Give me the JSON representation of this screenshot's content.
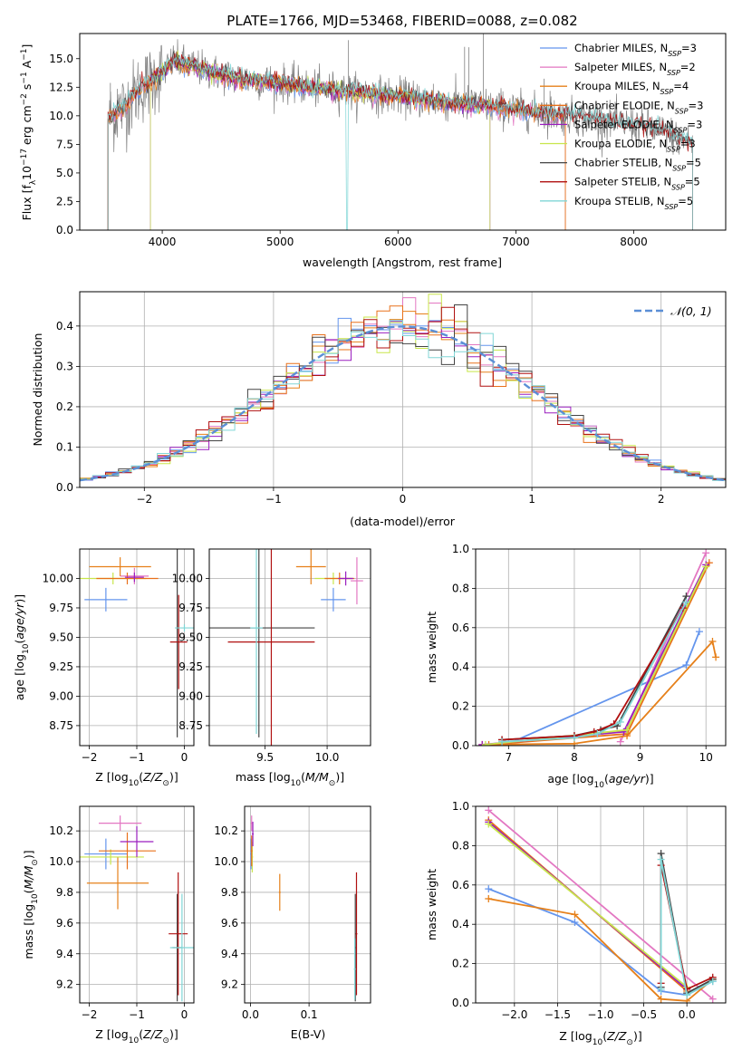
{
  "figure": {
    "title": "PLATE=1766, MJD=53468, FIBERID=0088, z=0.082"
  },
  "colors": {
    "chabrier_miles": "#6495ed",
    "salpeter_miles": "#e377c2",
    "kroupa_miles": "#e6801a",
    "chabrier_elodie": "#e8701a",
    "salpeter_elodie": "#9a1fbf",
    "kroupa_elodie": "#c8e64a",
    "chabrier_stelib": "#444444",
    "salpeter_stelib": "#b01010",
    "kroupa_stelib": "#80d6d6",
    "data": "#808080",
    "normal": "#5b8fd6",
    "grid": "#b0b0b0"
  },
  "chart_data": [
    {
      "id": "spectrum",
      "type": "line",
      "title": "PLATE=1766, MJD=53468, FIBERID=0088, z=0.082",
      "xlabel": "wavelength [Angstrom, rest frame]",
      "ylabel": "Flux [f$_\\lambda$10$^{-17}$ erg cm$^{-2}$ s$^{-1}$ A$^{-1}$]",
      "xlim": [
        3300,
        8780
      ],
      "ylim": [
        0,
        17.2
      ],
      "xticks": [
        "4000",
        "5000",
        "6000",
        "7000",
        "8000"
      ],
      "xtick_values": [
        4000,
        5000,
        6000,
        7000,
        8000
      ],
      "yticks": [
        "0.0",
        "2.5",
        "5.0",
        "7.5",
        "10.0",
        "12.5",
        "15.0"
      ],
      "ytick_values": [
        0,
        2.5,
        5,
        7.5,
        10,
        12.5,
        15
      ],
      "grid": false,
      "legend": "upper-right",
      "continuum": {
        "x": [
          3550,
          3700,
          3800,
          3900,
          4000,
          4100,
          4300,
          4500,
          4700,
          5000,
          5300,
          5600,
          6000,
          6300,
          6600,
          6900,
          7200,
          7500,
          7800,
          8100,
          8300,
          8500
        ],
        "y": [
          9.8,
          11.0,
          12.3,
          13.0,
          13.8,
          14.8,
          14.2,
          13.6,
          13.2,
          12.9,
          12.4,
          12.1,
          11.7,
          11.3,
          11.0,
          10.7,
          10.3,
          9.9,
          9.5,
          9.0,
          8.4,
          7.6
        ]
      },
      "legend_items": [
        {
          "label": "Chabrier MILES, N",
          "sub": "SSP",
          "suffix": "=3",
          "color_key": "chabrier_miles"
        },
        {
          "label": "Salpeter MILES, N",
          "sub": "SSP",
          "suffix": "=2",
          "color_key": "salpeter_miles"
        },
        {
          "label": "Kroupa MILES, N",
          "sub": "SSP",
          "suffix": "=4",
          "color_key": "kroupa_miles"
        },
        {
          "label": "Chabrier ELODIE, N",
          "sub": "SSP",
          "suffix": "=3",
          "color_key": "chabrier_elodie"
        },
        {
          "label": "Salpeter ELODIE, N",
          "sub": "SSP",
          "suffix": "=3",
          "color_key": "salpeter_elodie"
        },
        {
          "label": "Kroupa ELODIE, N",
          "sub": "SSP",
          "suffix": "=3",
          "color_key": "kroupa_elodie"
        },
        {
          "label": "Chabrier STELIB, N",
          "sub": "SSP",
          "suffix": "=5",
          "color_key": "chabrier_stelib"
        },
        {
          "label": "Salpeter STELIB, N",
          "sub": "SSP",
          "suffix": "=5",
          "color_key": "salpeter_stelib"
        },
        {
          "label": "Kroupa STELIB, N",
          "sub": "SSP",
          "suffix": "=5",
          "color_key": "kroupa_stelib"
        }
      ]
    },
    {
      "id": "residuals",
      "type": "line",
      "xlabel": "(data-model)/error",
      "ylabel": "Normed distribution",
      "xlim": [
        -2.5,
        2.5
      ],
      "ylim": [
        0,
        0.485
      ],
      "xticks": [
        "−2",
        "−1",
        "0",
        "1",
        "2"
      ],
      "xtick_values": [
        -2,
        -1,
        0,
        1,
        2
      ],
      "yticks": [
        "0.0",
        "0.1",
        "0.2",
        "0.3",
        "0.4"
      ],
      "ytick_values": [
        0,
        0.1,
        0.2,
        0.3,
        0.4
      ],
      "grid": true,
      "legend": "upper-right",
      "legend_label": "𝒩(0, 1)",
      "bin_width": 0.1
    },
    {
      "id": "age_vs_Z",
      "type": "scatter",
      "xlabel": "Z [log10(Z/Z⊙)]",
      "ylabel": "age  [log10(age/yr)]",
      "xlim": [
        -2.2,
        0.2
      ],
      "ylim": [
        8.58,
        10.25
      ],
      "xticks": [
        "−2",
        "−1",
        "0"
      ],
      "xtick_values": [
        -2,
        -1,
        0
      ],
      "yticks": [
        "8.75",
        "9.00",
        "9.25",
        "9.50",
        "9.75",
        "10.00"
      ],
      "ytick_values": [
        8.75,
        9.0,
        9.25,
        9.5,
        9.75,
        10.0
      ],
      "grid": true,
      "points": [
        {
          "x": -1.65,
          "y": 9.82,
          "xerr": 0.45,
          "yerr": 0.1,
          "color_key": "chabrier_miles"
        },
        {
          "x": -1.05,
          "y": 10.02,
          "xerr": 0.3,
          "yerr": 0.07,
          "color_key": "salpeter_miles"
        },
        {
          "x": -1.35,
          "y": 10.1,
          "xerr": 0.65,
          "yerr": 0.08,
          "color_key": "kroupa_miles"
        },
        {
          "x": -1.5,
          "y": 10.0,
          "xerr": 0.7,
          "yerr": 0.05,
          "color_key": "kroupa_elodie"
        },
        {
          "x": -1.2,
          "y": 10.0,
          "xerr": 0.65,
          "yerr": 0.05,
          "color_key": "chabrier_elodie"
        },
        {
          "x": -1.05,
          "y": 10.01,
          "xerr": 0.2,
          "yerr": 0.04,
          "color_key": "salpeter_elodie"
        },
        {
          "x": -0.15,
          "y": 9.58,
          "xerr": 0.02,
          "yerr": 0.93,
          "color_key": "chabrier_stelib"
        },
        {
          "x": -0.12,
          "y": 9.46,
          "xerr": 0.18,
          "yerr": 0.4,
          "color_key": "salpeter_stelib"
        },
        {
          "x": 0.0,
          "y": 9.58,
          "xerr": 0.2,
          "yerr": 0.03,
          "color_key": "kroupa_stelib"
        }
      ]
    },
    {
      "id": "age_vs_mass",
      "type": "scatter",
      "xlabel": "mass [log10(M/M⊙)]",
      "ylabel": "",
      "xlim": [
        9.05,
        10.35
      ],
      "ylim": [
        8.58,
        10.25
      ],
      "xticks": [
        "9.5",
        "10.0"
      ],
      "xtick_values": [
        9.5,
        10.0
      ],
      "yticks": [
        "8.75",
        "9.00",
        "9.25",
        "9.50",
        "9.75",
        "10.00"
      ],
      "ytick_values": [
        8.75,
        9.0,
        9.25,
        9.5,
        9.75,
        10.0
      ],
      "grid": true,
      "points": [
        {
          "x": 10.05,
          "y": 9.82,
          "xerr": 0.1,
          "yerr": 0.1,
          "color_key": "chabrier_miles"
        },
        {
          "x": 10.24,
          "y": 9.98,
          "xerr": 0.05,
          "yerr": 0.2,
          "color_key": "salpeter_miles"
        },
        {
          "x": 9.87,
          "y": 10.1,
          "xerr": 0.12,
          "yerr": 0.15,
          "color_key": "kroupa_miles"
        },
        {
          "x": 10.05,
          "y": 10.0,
          "xerr": 0.15,
          "yerr": 0.05,
          "color_key": "kroupa_elodie"
        },
        {
          "x": 10.1,
          "y": 10.0,
          "xerr": 0.12,
          "yerr": 0.05,
          "color_key": "chabrier_elodie"
        },
        {
          "x": 10.15,
          "y": 10.0,
          "xerr": 0.06,
          "yerr": 0.06,
          "color_key": "salpeter_elodie"
        },
        {
          "x": 9.45,
          "y": 9.58,
          "xerr": 0.45,
          "yerr": 0.93,
          "color_key": "chabrier_stelib"
        },
        {
          "x": 9.55,
          "y": 9.46,
          "xerr": 0.35,
          "yerr": 0.88,
          "color_key": "salpeter_stelib"
        },
        {
          "x": 9.43,
          "y": 9.58,
          "xerr": 0.05,
          "yerr": 0.9,
          "color_key": "kroupa_stelib"
        }
      ]
    },
    {
      "id": "weight_vs_age",
      "type": "line",
      "xlabel": "age  [log10(age/yr)]",
      "ylabel": "mass weight",
      "xlim": [
        6.5,
        10.3
      ],
      "ylim": [
        0,
        1.0
      ],
      "xticks": [
        "7",
        "8",
        "9",
        "10"
      ],
      "xtick_values": [
        7,
        8,
        9,
        10
      ],
      "yticks": [
        "0.0",
        "0.2",
        "0.4",
        "0.6",
        "0.8",
        "1.0"
      ],
      "ytick_values": [
        0,
        0.2,
        0.4,
        0.6,
        0.8,
        1.0
      ],
      "grid": true,
      "series": [
        {
          "color_key": "chabrier_miles",
          "x": [
            7.0,
            9.7,
            9.9
          ],
          "y": [
            0.01,
            0.41,
            0.58
          ]
        },
        {
          "color_key": "salpeter_miles",
          "x": [
            8.7,
            10.0
          ],
          "y": [
            0.02,
            0.98
          ]
        },
        {
          "color_key": "kroupa_miles",
          "x": [
            6.6,
            8.0,
            8.8,
            10.1,
            10.15
          ],
          "y": [
            0.005,
            0.01,
            0.05,
            0.53,
            0.45
          ]
        },
        {
          "color_key": "chabrier_elodie",
          "x": [
            6.7,
            8.8,
            10.05
          ],
          "y": [
            0.005,
            0.06,
            0.93
          ]
        },
        {
          "color_key": "salpeter_elodie",
          "x": [
            6.6,
            8.75,
            10.0
          ],
          "y": [
            0.005,
            0.07,
            0.92
          ]
        },
        {
          "color_key": "kroupa_elodie",
          "x": [
            6.65,
            8.8,
            10.0
          ],
          "y": [
            0.005,
            0.08,
            0.91
          ]
        },
        {
          "color_key": "chabrier_stelib",
          "x": [
            6.9,
            8.0,
            8.4,
            8.65,
            9.7
          ],
          "y": [
            0.03,
            0.05,
            0.08,
            0.1,
            0.76
          ]
        },
        {
          "color_key": "salpeter_stelib",
          "x": [
            6.9,
            8.0,
            8.3,
            8.6,
            9.65
          ],
          "y": [
            0.03,
            0.05,
            0.07,
            0.11,
            0.7
          ]
        },
        {
          "color_key": "kroupa_stelib",
          "x": [
            6.9,
            8.0,
            8.35,
            8.7,
            9.7
          ],
          "y": [
            0.02,
            0.04,
            0.06,
            0.12,
            0.73
          ]
        }
      ]
    },
    {
      "id": "mass_vs_Z",
      "type": "scatter",
      "xlabel": "Z [log10(Z/Z⊙)]",
      "ylabel": "mass [log10(M/M⊙)]",
      "xlim": [
        -2.2,
        0.2
      ],
      "ylim": [
        9.08,
        10.36
      ],
      "xticks": [
        "−2",
        "−1",
        "0"
      ],
      "xtick_values": [
        -2,
        -1,
        0
      ],
      "yticks": [
        "9.2",
        "9.4",
        "9.6",
        "9.8",
        "10.0",
        "10.2"
      ],
      "ytick_values": [
        9.2,
        9.4,
        9.6,
        9.8,
        10.0,
        10.2
      ],
      "grid": true,
      "points": [
        {
          "x": -1.65,
          "y": 10.05,
          "xerr": 0.45,
          "yerr": 0.1,
          "color_key": "chabrier_miles"
        },
        {
          "x": -1.35,
          "y": 10.25,
          "xerr": 0.45,
          "yerr": 0.05,
          "color_key": "salpeter_miles"
        },
        {
          "x": -1.4,
          "y": 9.86,
          "xerr": 0.65,
          "yerr": 0.17,
          "color_key": "kroupa_miles"
        },
        {
          "x": -1.55,
          "y": 10.03,
          "xerr": 0.7,
          "yerr": 0.05,
          "color_key": "kroupa_elodie"
        },
        {
          "x": -1.2,
          "y": 10.07,
          "xerr": 0.6,
          "yerr": 0.12,
          "color_key": "chabrier_elodie"
        },
        {
          "x": -1.0,
          "y": 10.13,
          "xerr": 0.35,
          "yerr": 0.1,
          "color_key": "salpeter_elodie"
        },
        {
          "x": -0.15,
          "y": 9.44,
          "xerr": 0.1,
          "yerr": 0.35,
          "color_key": "chabrier_stelib"
        },
        {
          "x": -0.13,
          "y": 9.53,
          "xerr": 0.2,
          "yerr": 0.4,
          "color_key": "salpeter_stelib"
        },
        {
          "x": -0.05,
          "y": 9.44,
          "xerr": 0.25,
          "yerr": 0.35,
          "color_key": "kroupa_stelib"
        }
      ]
    },
    {
      "id": "mass_vs_EBV",
      "type": "scatter",
      "xlabel": "E(B-V)",
      "ylabel": "",
      "xlim": [
        -0.01,
        0.205
      ],
      "ylim": [
        9.08,
        10.36
      ],
      "xticks": [
        "0.0",
        "0.1"
      ],
      "xtick_values": [
        0.0,
        0.1
      ],
      "yticks": [
        "9.2",
        "9.4",
        "9.6",
        "9.8",
        "10.0",
        "10.2"
      ],
      "ytick_values": [
        9.2,
        9.4,
        9.6,
        9.8,
        10.0,
        10.2
      ],
      "grid": true,
      "points": [
        {
          "x": 0.001,
          "y": 10.05,
          "xerr": 0.001,
          "yerr": 0.1,
          "color_key": "chabrier_miles"
        },
        {
          "x": 0.002,
          "y": 10.25,
          "xerr": 0.001,
          "yerr": 0.05,
          "color_key": "salpeter_miles"
        },
        {
          "x": 0.05,
          "y": 9.8,
          "xerr": 0.001,
          "yerr": 0.12,
          "color_key": "kroupa_miles"
        },
        {
          "x": 0.003,
          "y": 10.03,
          "xerr": 0.001,
          "yerr": 0.1,
          "color_key": "kroupa_elodie"
        },
        {
          "x": 0.002,
          "y": 10.07,
          "xerr": 0.001,
          "yerr": 0.1,
          "color_key": "chabrier_elodie"
        },
        {
          "x": 0.004,
          "y": 10.18,
          "xerr": 0.001,
          "yerr": 0.08,
          "color_key": "salpeter_elodie"
        },
        {
          "x": 0.179,
          "y": 9.44,
          "xerr": 0.001,
          "yerr": 0.35,
          "color_key": "chabrier_stelib"
        },
        {
          "x": 0.181,
          "y": 9.53,
          "xerr": 0.001,
          "yerr": 0.4,
          "color_key": "salpeter_stelib"
        },
        {
          "x": 0.178,
          "y": 9.3,
          "xerr": 0.001,
          "yerr": 0.2,
          "color_key": "kroupa_stelib"
        }
      ]
    },
    {
      "id": "weight_vs_Z",
      "type": "line",
      "xlabel": "Z [log10(Z/Z⊙)]",
      "ylabel": "mass weight",
      "xlim": [
        -2.45,
        0.45
      ],
      "ylim": [
        0,
        1.0
      ],
      "xticks": [
        "−2.0",
        "−1.5",
        "−1.0",
        "−0.5",
        "0.0"
      ],
      "xtick_values": [
        -2.0,
        -1.5,
        -1.0,
        -0.5,
        0.0
      ],
      "yticks": [
        "0.0",
        "0.2",
        "0.4",
        "0.6",
        "0.8",
        "1.0"
      ],
      "ytick_values": [
        0,
        0.2,
        0.4,
        0.6,
        0.8,
        1.0
      ],
      "grid": true,
      "series": [
        {
          "color_key": "chabrier_miles",
          "x": [
            -2.3,
            -1.3,
            -0.3,
            0.0,
            0.3
          ],
          "y": [
            0.58,
            0.41,
            0.06,
            0.04,
            0.11
          ]
        },
        {
          "color_key": "salpeter_miles",
          "x": [
            -2.3,
            0.3
          ],
          "y": [
            0.98,
            0.02
          ]
        },
        {
          "color_key": "kroupa_miles",
          "x": [
            -2.3,
            -1.3,
            -0.3,
            0.0,
            0.3
          ],
          "y": [
            0.53,
            0.45,
            0.02,
            0.01,
            0.12
          ]
        },
        {
          "color_key": "chabrier_elodie",
          "x": [
            -2.3,
            0.0
          ],
          "y": [
            0.93,
            0.06
          ]
        },
        {
          "color_key": "salpeter_elodie",
          "x": [
            -2.3,
            0.0
          ],
          "y": [
            0.92,
            0.07
          ]
        },
        {
          "color_key": "kroupa_elodie",
          "x": [
            -2.3,
            0.0
          ],
          "y": [
            0.91,
            0.08
          ]
        },
        {
          "color_key": "chabrier_stelib",
          "x": [
            -0.3,
            -0.3,
            0.0,
            0.3
          ],
          "y": [
            0.08,
            0.76,
            0.05,
            0.12
          ]
        },
        {
          "color_key": "salpeter_stelib",
          "x": [
            -0.3,
            -0.3,
            0.0,
            0.3
          ],
          "y": [
            0.1,
            0.7,
            0.07,
            0.13
          ]
        },
        {
          "color_key": "kroupa_stelib",
          "x": [
            -0.3,
            -0.3,
            0.0,
            0.3
          ],
          "y": [
            0.07,
            0.73,
            0.04,
            0.11
          ]
        }
      ]
    }
  ]
}
